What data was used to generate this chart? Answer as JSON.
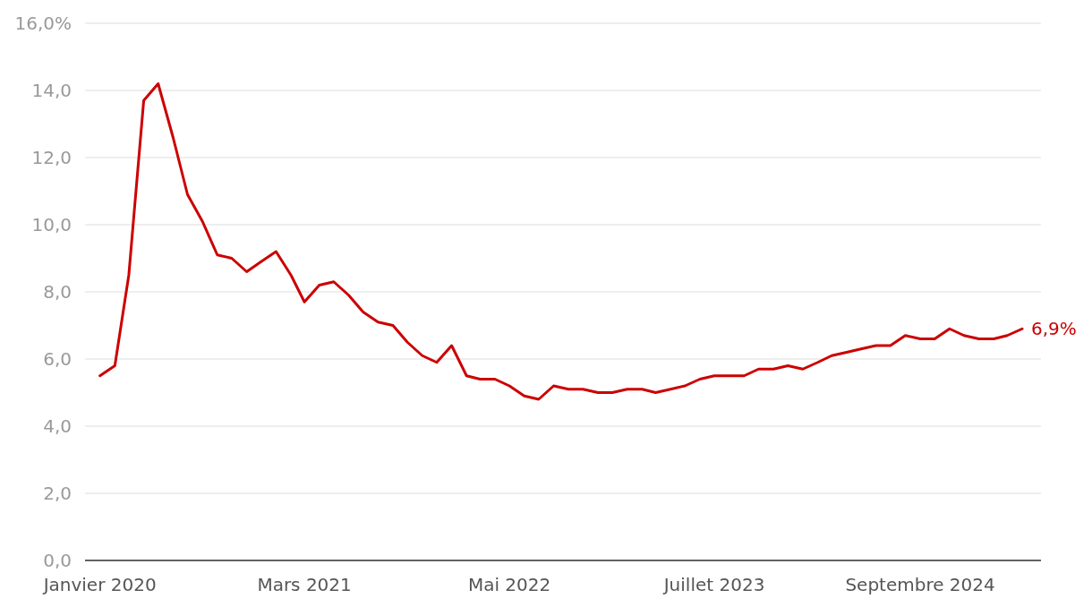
{
  "chart_data": {
    "type": "line",
    "x": [
      "2020-01",
      "2020-02",
      "2020-03",
      "2020-04",
      "2020-05",
      "2020-06",
      "2020-07",
      "2020-08",
      "2020-09",
      "2020-10",
      "2020-11",
      "2020-12",
      "2021-01",
      "2021-02",
      "2021-03",
      "2021-04",
      "2021-05",
      "2021-06",
      "2021-07",
      "2021-08",
      "2021-09",
      "2021-10",
      "2021-11",
      "2021-12",
      "2022-01",
      "2022-02",
      "2022-03",
      "2022-04",
      "2022-05",
      "2022-06",
      "2022-07",
      "2022-08",
      "2022-09",
      "2022-10",
      "2022-11",
      "2022-12",
      "2023-01",
      "2023-02",
      "2023-03",
      "2023-04",
      "2023-05",
      "2023-06",
      "2023-07",
      "2023-08",
      "2023-09",
      "2023-10",
      "2023-11",
      "2023-12",
      "2024-01",
      "2024-02",
      "2024-03",
      "2024-04",
      "2024-05",
      "2024-06",
      "2024-07",
      "2024-08",
      "2024-09",
      "2024-10",
      "2024-11",
      "2024-12",
      "2025-01",
      "2025-02",
      "2025-03",
      "2025-04"
    ],
    "series": [
      {
        "color": "#cc0000",
        "values": [
          5.5,
          5.8,
          8.5,
          13.7,
          14.2,
          12.6,
          10.9,
          10.1,
          9.1,
          9.0,
          8.6,
          8.9,
          9.2,
          8.5,
          7.7,
          8.2,
          8.3,
          7.9,
          7.4,
          7.1,
          7.0,
          6.5,
          6.1,
          5.9,
          6.4,
          5.5,
          5.4,
          5.4,
          5.2,
          4.9,
          4.8,
          5.2,
          5.1,
          5.1,
          5.0,
          5.0,
          5.1,
          5.1,
          5.0,
          5.1,
          5.2,
          5.4,
          5.5,
          5.5,
          5.5,
          5.7,
          5.7,
          5.8,
          5.7,
          5.9,
          6.1,
          6.2,
          6.3,
          6.4,
          6.4,
          6.7,
          6.6,
          6.6,
          6.9,
          6.7,
          6.6,
          6.6,
          6.7,
          6.9
        ]
      }
    ],
    "xlim": [
      "2019-12-01",
      "2025-05-10"
    ],
    "xticks": [
      {
        "value": "2020-01",
        "label": "Janvier 2020"
      },
      {
        "value": "2021-03",
        "label": "Mars 2021"
      },
      {
        "value": "2022-05",
        "label": "Mai 2022"
      },
      {
        "value": "2023-07",
        "label": "Juillet 2023"
      },
      {
        "value": "2024-09",
        "label": "Septembre 2024"
      }
    ],
    "ylim": [
      0,
      16
    ],
    "yticks": [
      {
        "value": 0,
        "label": "0,0"
      },
      {
        "value": 2,
        "label": "2,0"
      },
      {
        "value": 4,
        "label": "4,0"
      },
      {
        "value": 6,
        "label": "6,0"
      },
      {
        "value": 8,
        "label": "8,0"
      },
      {
        "value": 10,
        "label": "10,0"
      },
      {
        "value": 12,
        "label": "12,0"
      },
      {
        "value": 14,
        "label": "14,0"
      },
      {
        "value": 16,
        "label": "16,0%"
      }
    ],
    "grid": "y",
    "marker": "none",
    "line_style": "solid",
    "annotations": [
      {
        "text": "6,9%",
        "x": "2025-04",
        "y": 6.9
      }
    ]
  }
}
